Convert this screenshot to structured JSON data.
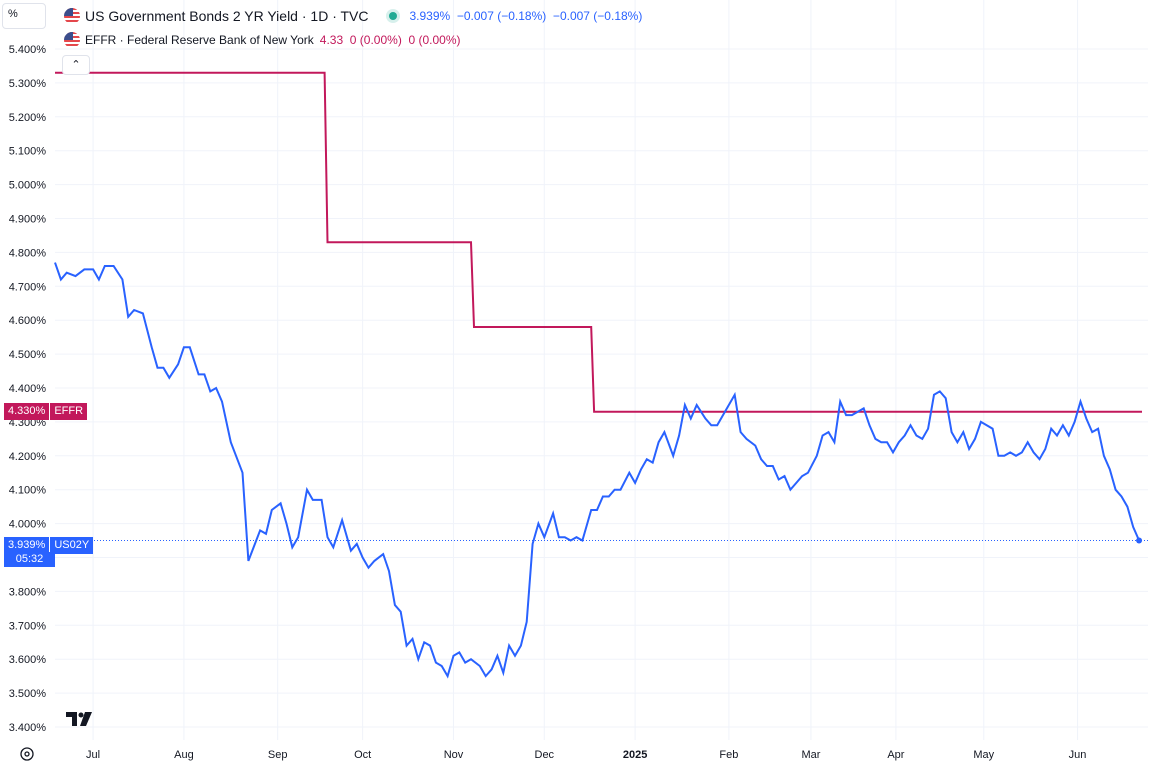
{
  "header": {
    "scale_button": "%",
    "series1": {
      "title": "US Government Bonds 2 YR Yield · 1D · TVC",
      "values": "3.939%  −0.007 (−0.18%)  −0.007 (−0.18%)"
    },
    "series2": {
      "title": "EFFR · Federal Reserve Bank of New York",
      "values": "4.33  0 (0.00%)  0 (0.00%)"
    }
  },
  "badges": {
    "effr_value": "4.330%",
    "effr_name": "EFFR",
    "us02y_value": "3.939%",
    "us02y_name": "US02Y",
    "countdown": "05:32"
  },
  "colors": {
    "us02y": "#2962ff",
    "effr": "#c2185b",
    "grid": "#f0f3fa",
    "up": "#22ab94"
  },
  "icons": {
    "logo": "tradingview-logo-icon",
    "settings": "gear-icon",
    "collapse": "chevron-up-icon",
    "flag": "us-flag-icon"
  },
  "chart_data": {
    "type": "line",
    "y_unit": "%",
    "ylim": [
      3.37,
      5.44
    ],
    "y_ticks": [
      "5.400%",
      "5.300%",
      "5.200%",
      "5.100%",
      "5.000%",
      "4.900%",
      "4.800%",
      "4.700%",
      "4.600%",
      "4.500%",
      "4.400%",
      "4.300%",
      "4.200%",
      "4.100%",
      "4.000%",
      "3.900%",
      "3.800%",
      "3.700%",
      "3.600%",
      "3.500%",
      "3.400%"
    ],
    "x_ticks": [
      {
        "label": "Jul",
        "date": "2024-07-01"
      },
      {
        "label": "Aug",
        "date": "2024-08-01"
      },
      {
        "label": "Sep",
        "date": "2024-09-02"
      },
      {
        "label": "Oct",
        "date": "2024-10-01"
      },
      {
        "label": "Nov",
        "date": "2024-11-01"
      },
      {
        "label": "Dec",
        "date": "2024-12-02"
      },
      {
        "label": "2025",
        "date": "2025-01-02"
      },
      {
        "label": "Feb",
        "date": "2025-02-03"
      },
      {
        "label": "Mar",
        "date": "2025-03-03"
      },
      {
        "label": "Apr",
        "date": "2025-04-01"
      },
      {
        "label": "May",
        "date": "2025-05-01"
      },
      {
        "label": "Jun",
        "date": "2025-06-02"
      }
    ],
    "x_range": [
      "2024-06-18",
      "2025-06-24"
    ],
    "series": [
      {
        "name": "US02Y",
        "points": [
          [
            "2024-06-18",
            4.77
          ],
          [
            "2024-06-20",
            4.72
          ],
          [
            "2024-06-22",
            4.74
          ],
          [
            "2024-06-25",
            4.73
          ],
          [
            "2024-06-28",
            4.75
          ],
          [
            "2024-07-01",
            4.75
          ],
          [
            "2024-07-03",
            4.72
          ],
          [
            "2024-07-05",
            4.76
          ],
          [
            "2024-07-08",
            4.76
          ],
          [
            "2024-07-11",
            4.72
          ],
          [
            "2024-07-13",
            4.61
          ],
          [
            "2024-07-15",
            4.63
          ],
          [
            "2024-07-18",
            4.62
          ],
          [
            "2024-07-21",
            4.52
          ],
          [
            "2024-07-23",
            4.46
          ],
          [
            "2024-07-25",
            4.46
          ],
          [
            "2024-07-27",
            4.43
          ],
          [
            "2024-07-30",
            4.47
          ],
          [
            "2024-08-01",
            4.52
          ],
          [
            "2024-08-03",
            4.52
          ],
          [
            "2024-08-06",
            4.44
          ],
          [
            "2024-08-08",
            4.44
          ],
          [
            "2024-08-10",
            4.39
          ],
          [
            "2024-08-12",
            4.4
          ],
          [
            "2024-08-14",
            4.36
          ],
          [
            "2024-08-17",
            4.24
          ],
          [
            "2024-08-21",
            4.15
          ],
          [
            "2024-08-23",
            3.89
          ],
          [
            "2024-08-27",
            3.98
          ],
          [
            "2024-08-29",
            3.97
          ],
          [
            "2024-08-31",
            4.04
          ],
          [
            "2024-09-03",
            4.06
          ],
          [
            "2024-09-05",
            4.0
          ],
          [
            "2024-09-07",
            3.93
          ],
          [
            "2024-09-09",
            3.96
          ],
          [
            "2024-09-12",
            4.1
          ],
          [
            "2024-09-14",
            4.07
          ],
          [
            "2024-09-17",
            4.07
          ],
          [
            "2024-09-19",
            3.96
          ],
          [
            "2024-09-21",
            3.93
          ],
          [
            "2024-09-24",
            4.01
          ],
          [
            "2024-09-27",
            3.92
          ],
          [
            "2024-09-29",
            3.94
          ],
          [
            "2024-10-01",
            3.9
          ],
          [
            "2024-10-03",
            3.87
          ],
          [
            "2024-10-05",
            3.89
          ],
          [
            "2024-10-08",
            3.91
          ],
          [
            "2024-10-10",
            3.86
          ],
          [
            "2024-10-12",
            3.76
          ],
          [
            "2024-10-14",
            3.74
          ],
          [
            "2024-10-16",
            3.64
          ],
          [
            "2024-10-18",
            3.66
          ],
          [
            "2024-10-20",
            3.6
          ],
          [
            "2024-10-22",
            3.65
          ],
          [
            "2024-10-24",
            3.64
          ],
          [
            "2024-10-26",
            3.59
          ],
          [
            "2024-10-28",
            3.58
          ],
          [
            "2024-10-30",
            3.55
          ],
          [
            "2024-11-01",
            3.61
          ],
          [
            "2024-11-03",
            3.62
          ],
          [
            "2024-11-05",
            3.59
          ],
          [
            "2024-11-07",
            3.6
          ],
          [
            "2024-11-10",
            3.58
          ],
          [
            "2024-11-12",
            3.55
          ],
          [
            "2024-11-14",
            3.57
          ],
          [
            "2024-11-16",
            3.61
          ],
          [
            "2024-11-18",
            3.56
          ],
          [
            "2024-11-20",
            3.64
          ],
          [
            "2024-11-22",
            3.61
          ],
          [
            "2024-11-24",
            3.64
          ],
          [
            "2024-11-26",
            3.71
          ],
          [
            "2024-11-28",
            3.94
          ],
          [
            "2024-11-30",
            4.0
          ],
          [
            "2024-12-02",
            3.96
          ],
          [
            "2024-12-05",
            4.03
          ],
          [
            "2024-12-07",
            3.96
          ],
          [
            "2024-12-09",
            3.96
          ],
          [
            "2024-12-11",
            3.95
          ],
          [
            "2024-12-13",
            3.96
          ],
          [
            "2024-12-15",
            3.95
          ],
          [
            "2024-12-18",
            4.04
          ],
          [
            "2024-12-20",
            4.04
          ],
          [
            "2024-12-22",
            4.08
          ],
          [
            "2024-12-24",
            4.08
          ],
          [
            "2024-12-26",
            4.1
          ],
          [
            "2024-12-28",
            4.1
          ],
          [
            "2024-12-31",
            4.15
          ],
          [
            "2025-01-02",
            4.12
          ],
          [
            "2025-01-04",
            4.16
          ],
          [
            "2025-01-06",
            4.19
          ],
          [
            "2025-01-08",
            4.18
          ],
          [
            "2025-01-10",
            4.24
          ],
          [
            "2025-01-12",
            4.27
          ],
          [
            "2025-01-15",
            4.2
          ],
          [
            "2025-01-17",
            4.26
          ],
          [
            "2025-01-19",
            4.35
          ],
          [
            "2025-01-21",
            4.31
          ],
          [
            "2025-01-23",
            4.35
          ],
          [
            "2025-01-26",
            4.31
          ],
          [
            "2025-01-28",
            4.29
          ],
          [
            "2025-01-30",
            4.29
          ],
          [
            "2025-02-01",
            4.32
          ],
          [
            "2025-02-05",
            4.38
          ],
          [
            "2025-02-07",
            4.27
          ],
          [
            "2025-02-09",
            4.25
          ],
          [
            "2025-02-12",
            4.23
          ],
          [
            "2025-02-14",
            4.19
          ],
          [
            "2025-02-16",
            4.17
          ],
          [
            "2025-02-18",
            4.17
          ],
          [
            "2025-02-20",
            4.13
          ],
          [
            "2025-02-22",
            4.14
          ],
          [
            "2025-02-24",
            4.1
          ],
          [
            "2025-02-26",
            4.12
          ],
          [
            "2025-02-28",
            4.14
          ],
          [
            "2025-03-02",
            4.15
          ],
          [
            "2025-03-05",
            4.2
          ],
          [
            "2025-03-07",
            4.26
          ],
          [
            "2025-03-09",
            4.27
          ],
          [
            "2025-03-11",
            4.24
          ],
          [
            "2025-03-13",
            4.36
          ],
          [
            "2025-03-15",
            4.32
          ],
          [
            "2025-03-17",
            4.32
          ],
          [
            "2025-03-19",
            4.33
          ],
          [
            "2025-03-21",
            4.34
          ],
          [
            "2025-03-23",
            4.29
          ],
          [
            "2025-03-25",
            4.25
          ],
          [
            "2025-03-27",
            4.24
          ],
          [
            "2025-03-29",
            4.24
          ],
          [
            "2025-03-31",
            4.21
          ],
          [
            "2025-04-02",
            4.24
          ],
          [
            "2025-04-04",
            4.26
          ],
          [
            "2025-04-06",
            4.29
          ],
          [
            "2025-04-08",
            4.26
          ],
          [
            "2025-04-10",
            4.25
          ],
          [
            "2025-04-12",
            4.28
          ],
          [
            "2025-04-14",
            4.38
          ],
          [
            "2025-04-16",
            4.39
          ],
          [
            "2025-04-18",
            4.37
          ],
          [
            "2025-04-20",
            4.27
          ],
          [
            "2025-04-22",
            4.24
          ],
          [
            "2025-04-24",
            4.27
          ],
          [
            "2025-04-26",
            4.22
          ],
          [
            "2025-04-28",
            4.25
          ],
          [
            "2025-04-30",
            4.3
          ],
          [
            "2025-05-02",
            4.29
          ],
          [
            "2025-05-04",
            4.28
          ],
          [
            "2025-05-06",
            4.2
          ],
          [
            "2025-05-08",
            4.2
          ],
          [
            "2025-05-10",
            4.21
          ],
          [
            "2025-05-12",
            4.2
          ],
          [
            "2025-05-14",
            4.21
          ],
          [
            "2025-05-16",
            4.24
          ],
          [
            "2025-05-18",
            4.21
          ],
          [
            "2025-05-20",
            4.19
          ],
          [
            "2025-05-22",
            4.22
          ],
          [
            "2025-05-24",
            4.28
          ],
          [
            "2025-05-26",
            4.26
          ],
          [
            "2025-05-28",
            4.29
          ],
          [
            "2025-05-30",
            4.26
          ],
          [
            "2025-06-01",
            4.3
          ],
          [
            "2025-06-03",
            4.36
          ],
          [
            "2025-06-05",
            4.31
          ],
          [
            "2025-06-07",
            4.27
          ],
          [
            "2025-06-09",
            4.28
          ],
          [
            "2025-06-11",
            4.2
          ],
          [
            "2025-06-13",
            4.16
          ],
          [
            "2025-06-15",
            4.1
          ],
          [
            "2025-06-17",
            4.08
          ],
          [
            "2025-06-19",
            4.05
          ],
          [
            "2025-06-21",
            3.99
          ],
          [
            "2025-06-23",
            3.95
          ]
        ]
      },
      {
        "name": "EFFR",
        "points": [
          [
            "2024-06-18",
            5.33
          ],
          [
            "2024-09-18",
            5.33
          ],
          [
            "2024-09-19",
            4.83
          ],
          [
            "2024-11-07",
            4.83
          ],
          [
            "2024-11-08",
            4.58
          ],
          [
            "2024-12-18",
            4.58
          ],
          [
            "2024-12-19",
            4.33
          ],
          [
            "2025-06-24",
            4.33
          ]
        ]
      }
    ]
  }
}
